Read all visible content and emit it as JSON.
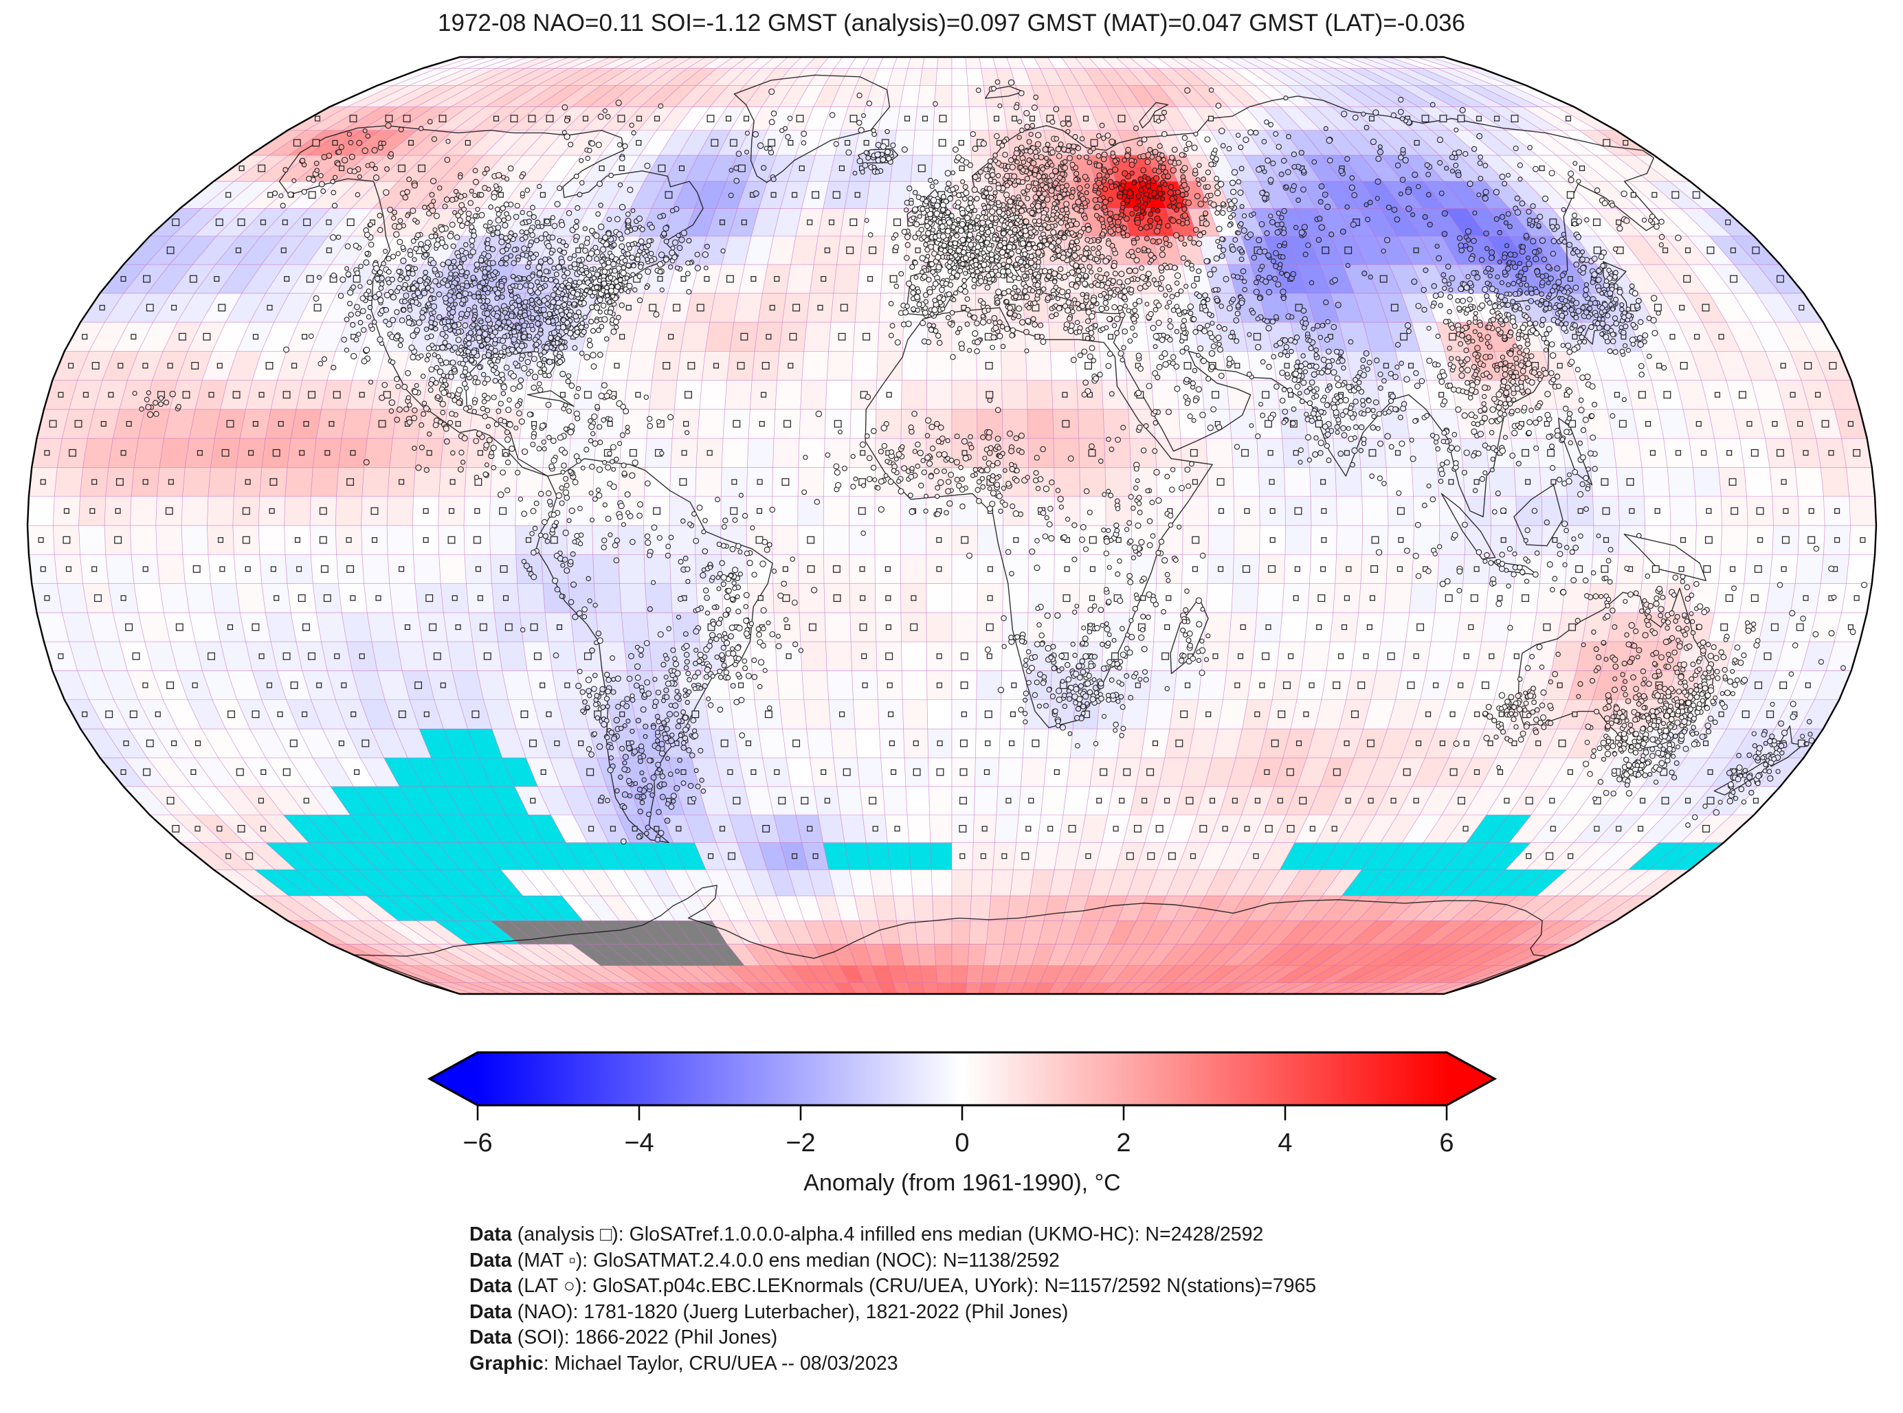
{
  "title": "1972-08 NAO=0.11 SOI=-1.12 GMST (analysis)=0.097 GMST (MAT)=0.047 GMST (LAT)=-0.036",
  "colorbar": {
    "label": "Anomaly (from 1961-1990), °C",
    "ticks": [
      "−6",
      "−4",
      "−2",
      "0",
      "2",
      "4",
      "6"
    ],
    "tick_values": [
      -6,
      -4,
      -2,
      0,
      2,
      4,
      6
    ],
    "min": -6,
    "max": 6,
    "left_color": "#0000ff",
    "mid_color": "#ffffff",
    "right_color": "#ff0000",
    "mask_ice_color": "#00e0e6",
    "mask_missing_color": "#808080"
  },
  "attribution": {
    "lines": [
      {
        "bold": "Data",
        "text": " (analysis □): GloSATref.1.0.0.0-alpha.4 infilled ens median (UKMO-HC): N=2428/2592"
      },
      {
        "bold": "Data",
        "text": " (MAT ▫): GloSATMAT.2.4.0.0 ens median (NOC): N=1138/2592"
      },
      {
        "bold": "Data",
        "text": " (LAT ○): GloSAT.p04c.EBC.LEKnormals (CRU/UEA, UYork): N=1157/2592 N(stations)=7965"
      },
      {
        "bold": "Data",
        "text": " (NAO): 1781-1820 (Juerg Luterbacher), 1821-2022 (Phil Jones)"
      },
      {
        "bold": "Data",
        "text": " (SOI): 1866-2022 (Phil Jones)"
      },
      {
        "bold": "Graphic",
        "text": ": Michael Taylor, CRU/UEA -- 08/03/2023"
      }
    ]
  },
  "chart_data": {
    "type": "heatmap",
    "projection": "robinson",
    "date": "1972-08",
    "title": "1972-08 NAO=0.11 SOI=-1.12 GMST (analysis)=0.097 GMST (MAT)=0.047 GMST (LAT)=-0.036",
    "indices": {
      "NAO": 0.11,
      "SOI": -1.12,
      "GMST_analysis": 0.097,
      "GMST_MAT": 0.047,
      "GMST_LAT": -0.036
    },
    "counts": {
      "analysis_cells": "2428/2592",
      "MAT_cells": "1138/2592",
      "LAT_cells": "1157/2592",
      "stations": 7965
    },
    "legend_markers": [
      {
        "glyph": "□",
        "meaning": "analysis grid cell"
      },
      {
        "glyph": "▫",
        "meaning": "MAT grid cell"
      },
      {
        "glyph": "○",
        "meaning": "LAT station"
      }
    ],
    "colorbar": {
      "label": "Anomaly (from 1961-1990), °C",
      "range": [
        -6,
        6
      ],
      "tick_step": 2,
      "colormap": "blue-white-red"
    },
    "grid_resolution_deg": 5,
    "anomaly_blobs_est": [
      [
        47,
        57,
        8,
        5,
        5.2
      ],
      [
        43,
        56,
        18,
        9,
        1.8
      ],
      [
        60,
        79,
        28,
        5,
        1.4
      ],
      [
        -110,
        79,
        45,
        6,
        1.2
      ],
      [
        -155,
        66,
        14,
        5,
        1.8
      ],
      [
        -170,
        70,
        15,
        5,
        1.2
      ],
      [
        -125,
        58,
        12,
        6,
        1.2
      ],
      [
        -62,
        60,
        12,
        8,
        -1.4
      ],
      [
        -52,
        53,
        10,
        6,
        -1.1
      ],
      [
        -28,
        49,
        12,
        5,
        0.7
      ],
      [
        -45,
        33,
        15,
        7,
        0.8
      ],
      [
        -100,
        41,
        12,
        8,
        -1.3
      ],
      [
        -85,
        34,
        7,
        5,
        -0.7
      ],
      [
        -178,
        45,
        10,
        8,
        -1.5
      ],
      [
        -150,
        47,
        12,
        8,
        -1.0
      ],
      [
        -170,
        30,
        18,
        8,
        0.6
      ],
      [
        -145,
        13,
        28,
        7,
        1.5
      ],
      [
        -118,
        15,
        15,
        6,
        0.8
      ],
      [
        10,
        17,
        15,
        6,
        1.1
      ],
      [
        28,
        12,
        12,
        6,
        0.6
      ],
      [
        15,
        36,
        12,
        4,
        0.5
      ],
      [
        70,
        44,
        12,
        8,
        -2.2
      ],
      [
        90,
        55,
        18,
        10,
        -1.8
      ],
      [
        115,
        55,
        18,
        10,
        -1.6
      ],
      [
        125,
        45,
        10,
        8,
        -2.0
      ],
      [
        95,
        32,
        14,
        7,
        -1.0
      ],
      [
        108,
        31,
        7,
        5,
        2.0
      ],
      [
        112,
        33,
        12,
        8,
        0.7
      ],
      [
        152,
        47,
        10,
        9,
        0.8
      ],
      [
        138,
        37,
        6,
        5,
        -0.6
      ],
      [
        150,
        78,
        40,
        6,
        -0.9
      ],
      [
        75,
        12,
        10,
        6,
        -0.5
      ],
      [
        115,
        3,
        15,
        7,
        -0.6
      ],
      [
        135,
        -25,
        11,
        8,
        1.5
      ],
      [
        170,
        -42,
        18,
        10,
        -0.8
      ],
      [
        75,
        -42,
        28,
        7,
        0.9
      ],
      [
        25,
        -29,
        10,
        6,
        -0.7
      ],
      [
        -55,
        -13,
        11,
        8,
        -0.9
      ],
      [
        -30,
        -13,
        18,
        6,
        0.5
      ],
      [
        -62,
        -38,
        9,
        9,
        -1.2
      ],
      [
        -70,
        -50,
        8,
        7,
        -1.3
      ],
      [
        -38,
        -57,
        10,
        5,
        -1.8
      ],
      [
        -110,
        -30,
        20,
        12,
        -0.6
      ],
      [
        -170,
        -55,
        20,
        8,
        0.8
      ],
      [
        0,
        -87,
        150,
        6,
        2.8
      ],
      [
        110,
        -73,
        35,
        7,
        2.2
      ],
      [
        40,
        -70,
        30,
        6,
        1.5
      ],
      [
        160,
        -77,
        25,
        6,
        1.8
      ],
      [
        -30,
        -78,
        25,
        6,
        1.5
      ],
      [
        -80,
        -10,
        8,
        6,
        -0.8
      ],
      [
        20,
        63,
        10,
        5,
        0.9
      ],
      [
        -20,
        60,
        10,
        6,
        -0.8
      ]
    ],
    "mask_cells": {
      "cyan": [
        [
          -110,
          -95,
          -40,
          -35
        ],
        [
          -120,
          -90,
          -45,
          -40
        ],
        [
          -135,
          -95,
          -50,
          -45
        ],
        [
          -150,
          -90,
          -55,
          -50
        ],
        [
          -160,
          -60,
          -60,
          -55
        ],
        [
          -170,
          -110,
          -65,
          -60
        ],
        [
          -150,
          -100,
          -70,
          -65
        ],
        [
          -140,
          -120,
          -75,
          -70
        ],
        [
          -30,
          0,
          -60,
          -55
        ],
        [
          80,
          135,
          -60,
          -55
        ],
        [
          100,
          150,
          -65,
          -60
        ],
        [
          120,
          130,
          -55,
          -50
        ],
        [
          165,
          180,
          -60,
          -55
        ]
      ],
      "gray": [
        [
          -125,
          -65,
          -75,
          -70
        ],
        [
          -110,
          -65,
          -80,
          -75
        ]
      ]
    },
    "station_clusters_est": [
      [
        10,
        50,
        9,
        5,
        420
      ],
      [
        20,
        52,
        10,
        6,
        240
      ],
      [
        2,
        47,
        4,
        3,
        90
      ],
      [
        18,
        62,
        7,
        5,
        130
      ],
      [
        26,
        60,
        5,
        4,
        70
      ],
      [
        -4,
        40,
        4,
        3,
        80
      ],
      [
        13,
        43,
        4,
        4,
        80
      ],
      [
        22,
        41,
        5,
        4,
        90
      ],
      [
        -2,
        53,
        3,
        3,
        95
      ],
      [
        -8,
        53,
        2,
        2,
        25
      ],
      [
        -19,
        64.8,
        2.5,
        1.5,
        35
      ],
      [
        42,
        55,
        10,
        7,
        220
      ],
      [
        45,
        63,
        12,
        5,
        60
      ],
      [
        62,
        57,
        9,
        6,
        90
      ],
      [
        90,
        60,
        14,
        8,
        90
      ],
      [
        128,
        63,
        12,
        7,
        70
      ],
      [
        135,
        49,
        6,
        5,
        50
      ],
      [
        158,
        54,
        4,
        4,
        20
      ],
      [
        68,
        48,
        9,
        5,
        70
      ],
      [
        62,
        40,
        7,
        4,
        55
      ],
      [
        44,
        42,
        4,
        3,
        40
      ],
      [
        33,
        39,
        6,
        3,
        70
      ],
      [
        44,
        33,
        6,
        5,
        55
      ],
      [
        53,
        33,
        6,
        5,
        55
      ],
      [
        46,
        22,
        6,
        5,
        30
      ],
      [
        77,
        22,
        7,
        6,
        200
      ],
      [
        70,
        29,
        4,
        4,
        50
      ],
      [
        101,
        15,
        6,
        5,
        70
      ],
      [
        110,
        -6,
        12,
        3,
        70
      ],
      [
        122,
        12,
        3,
        4,
        35
      ],
      [
        114,
        31,
        8,
        7,
        220
      ],
      [
        123,
        43,
        6,
        5,
        90
      ],
      [
        110,
        38,
        7,
        5,
        70
      ],
      [
        108,
        24,
        7,
        4,
        90
      ],
      [
        127.5,
        37,
        2.5,
        2.5,
        45
      ],
      [
        137,
        36,
        4,
        3.5,
        110
      ],
      [
        141,
        42,
        3,
        3,
        35
      ],
      [
        -152,
        63,
        7,
        4,
        60
      ],
      [
        -118,
        54,
        9,
        5,
        90
      ],
      [
        -100,
        52,
        10,
        4,
        90
      ],
      [
        -73,
        48,
        7,
        4,
        100
      ],
      [
        -63,
        46,
        4,
        3,
        50
      ],
      [
        -95,
        66,
        12,
        4,
        30
      ],
      [
        -118,
        41,
        7,
        6,
        180
      ],
      [
        -108,
        40,
        6,
        6,
        130
      ],
      [
        -96,
        38,
        7,
        6,
        210
      ],
      [
        -82,
        38,
        7,
        5,
        260
      ],
      [
        -73,
        42,
        4,
        3,
        130
      ],
      [
        -85,
        32,
        6,
        4,
        130
      ],
      [
        -98,
        31,
        5,
        4,
        100
      ],
      [
        -101,
        22,
        6,
        5,
        110
      ],
      [
        -88,
        14,
        6,
        4,
        55
      ],
      [
        -72,
        19,
        8,
        3,
        50
      ],
      [
        -70,
        6,
        6,
        5,
        70
      ],
      [
        -77,
        -6,
        4,
        7,
        55
      ],
      [
        -48,
        -5,
        8,
        5,
        50
      ],
      [
        -42,
        -12,
        5,
        6,
        65
      ],
      [
        -48,
        -23,
        6,
        4,
        110
      ],
      [
        -62,
        -36,
        6,
        7,
        120
      ],
      [
        -71,
        -33,
        2.5,
        8,
        65
      ],
      [
        -68,
        -47,
        4,
        5,
        30
      ],
      [
        -56,
        -33,
        3,
        3,
        35
      ],
      [
        3,
        34,
        8,
        3,
        65
      ],
      [
        30,
        28,
        4,
        5,
        30
      ],
      [
        -5,
        14,
        10,
        3,
        65
      ],
      [
        -8,
        8,
        8,
        3,
        70
      ],
      [
        8,
        9,
        4,
        3,
        55
      ],
      [
        18,
        2,
        8,
        6,
        45
      ],
      [
        36,
        0,
        5,
        8,
        85
      ],
      [
        26,
        -28,
        6,
        4,
        140
      ],
      [
        17,
        -23,
        4,
        5,
        30
      ],
      [
        30,
        -18,
        5,
        4,
        45
      ],
      [
        47,
        -19,
        2.5,
        4,
        30
      ],
      [
        147,
        -35,
        5,
        4,
        180
      ],
      [
        151,
        -28,
        3.5,
        5,
        110
      ],
      [
        117,
        -32,
        4,
        3,
        75
      ],
      [
        138,
        -34,
        4,
        3,
        55
      ],
      [
        133,
        -14,
        7,
        4,
        40
      ],
      [
        134,
        -24,
        8,
        5,
        50
      ],
      [
        144,
        -20,
        5,
        5,
        65
      ],
      [
        146.5,
        -42,
        2,
        2,
        30
      ],
      [
        172,
        -41,
        3.5,
        4,
        85
      ],
      [
        165,
        -18,
        12,
        6,
        25
      ],
      [
        -157,
        21,
        2.5,
        1.5,
        15
      ],
      [
        -48,
        66,
        4,
        5,
        25
      ],
      [
        -25,
        70,
        5,
        4,
        12
      ],
      [
        18,
        78,
        6,
        2,
        12
      ]
    ]
  }
}
